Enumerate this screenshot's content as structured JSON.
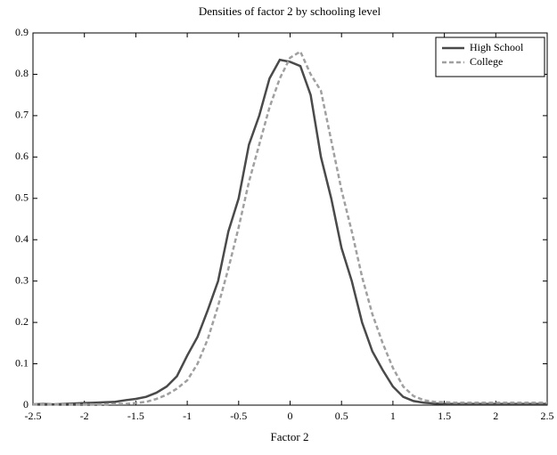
{
  "chart_data": {
    "type": "line",
    "title": "Densities of factor 2 by schooling level",
    "xlabel": "Factor 2",
    "x": [
      -2.5,
      -2.4,
      -2.3,
      -2.2,
      -2.1,
      -2.0,
      -1.9,
      -1.8,
      -1.7,
      -1.6,
      -1.5,
      -1.4,
      -1.3,
      -1.2,
      -1.1,
      -1.0,
      -0.9,
      -0.8,
      -0.7,
      -0.6,
      -0.5,
      -0.4,
      -0.3,
      -0.2,
      -0.1,
      0,
      0.1,
      0.2,
      0.3,
      0.4,
      0.5,
      0.6,
      0.7,
      0.8,
      0.9,
      1.0,
      1.1,
      1.2,
      1.3,
      1.4,
      1.5,
      1.6,
      1.7,
      1.8,
      1.9,
      2.0,
      2.1,
      2.2,
      2.3,
      2.4,
      2.5
    ],
    "series": [
      {
        "name": "High School",
        "color": "#4a4a4a",
        "dash": false,
        "values": [
          0.002,
          0.003,
          0.002,
          0.003,
          0.004,
          0.005,
          0.006,
          0.007,
          0.008,
          0.012,
          0.015,
          0.02,
          0.03,
          0.045,
          0.07,
          0.12,
          0.165,
          0.23,
          0.3,
          0.42,
          0.5,
          0.63,
          0.7,
          0.79,
          0.835,
          0.83,
          0.82,
          0.75,
          0.6,
          0.5,
          0.38,
          0.3,
          0.2,
          0.13,
          0.085,
          0.045,
          0.02,
          0.01,
          0.006,
          0.004,
          0.003,
          0.003,
          0.003,
          0.003,
          0.003,
          0.003,
          0.003,
          0.003,
          0.003,
          0.003,
          0.003
        ]
      },
      {
        "name": "College",
        "color": "#a0a0a0",
        "dash": true,
        "values": [
          0.002,
          0.002,
          0.002,
          0.002,
          0.002,
          0.002,
          0.002,
          0.002,
          0.003,
          0.003,
          0.005,
          0.008,
          0.015,
          0.025,
          0.04,
          0.06,
          0.1,
          0.16,
          0.24,
          0.33,
          0.43,
          0.54,
          0.63,
          0.72,
          0.79,
          0.84,
          0.855,
          0.8,
          0.76,
          0.64,
          0.52,
          0.42,
          0.31,
          0.22,
          0.15,
          0.09,
          0.045,
          0.022,
          0.012,
          0.008,
          0.007,
          0.006,
          0.006,
          0.006,
          0.006,
          0.006,
          0.006,
          0.006,
          0.006,
          0.006,
          0.006
        ]
      }
    ],
    "xlim": [
      -2.5,
      2.5
    ],
    "xticks": [
      -2.5,
      -2,
      -1.5,
      -1,
      -0.5,
      0,
      0.5,
      1,
      1.5,
      2,
      2.5
    ],
    "ylim": [
      0,
      0.9
    ],
    "yticks": [
      0,
      0.1,
      0.2,
      0.3,
      0.4,
      0.5,
      0.6,
      0.7,
      0.8,
      0.9
    ],
    "grid": false,
    "legend": "upper right"
  }
}
